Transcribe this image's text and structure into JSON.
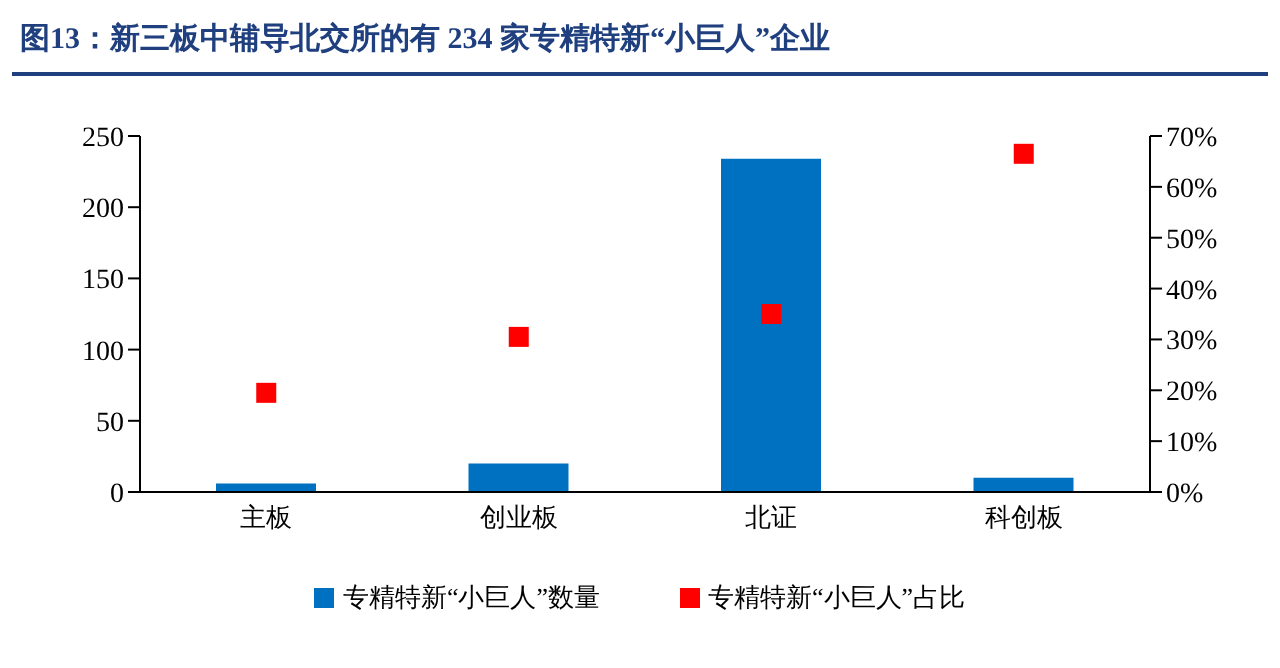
{
  "chart_data": {
    "type": "bar",
    "title": "图13：新三板中辅导北交所的有 234 家专精特新“小巨人”企业",
    "categories": [
      "主板",
      "创业板",
      "北证",
      "科创板"
    ],
    "series": [
      {
        "name": "专精特新“小巨人”数量",
        "color": "#0070c0",
        "values": [
          6,
          20,
          234,
          10
        ]
      },
      {
        "name": "专精特新“小巨人”占比",
        "type": "scatter",
        "axis": "y2",
        "color": "#ff0000",
        "values": [
          19.5,
          30.5,
          35,
          66.5
        ]
      }
    ],
    "ylim": [
      0,
      250
    ],
    "yticks": [
      0,
      50,
      100,
      150,
      200,
      250
    ],
    "y2lim": [
      0,
      70
    ],
    "y2ticks": [
      {
        "value": 0,
        "label": "0%"
      },
      {
        "value": 10,
        "label": "10%"
      },
      {
        "value": 20,
        "label": "20%"
      },
      {
        "value": 30,
        "label": "30%"
      },
      {
        "value": 40,
        "label": "40%"
      },
      {
        "value": 50,
        "label": "50%"
      },
      {
        "value": 60,
        "label": "60%"
      },
      {
        "value": 70,
        "label": "70%"
      }
    ],
    "marker": "square",
    "legend": "bottom",
    "grid": false
  }
}
